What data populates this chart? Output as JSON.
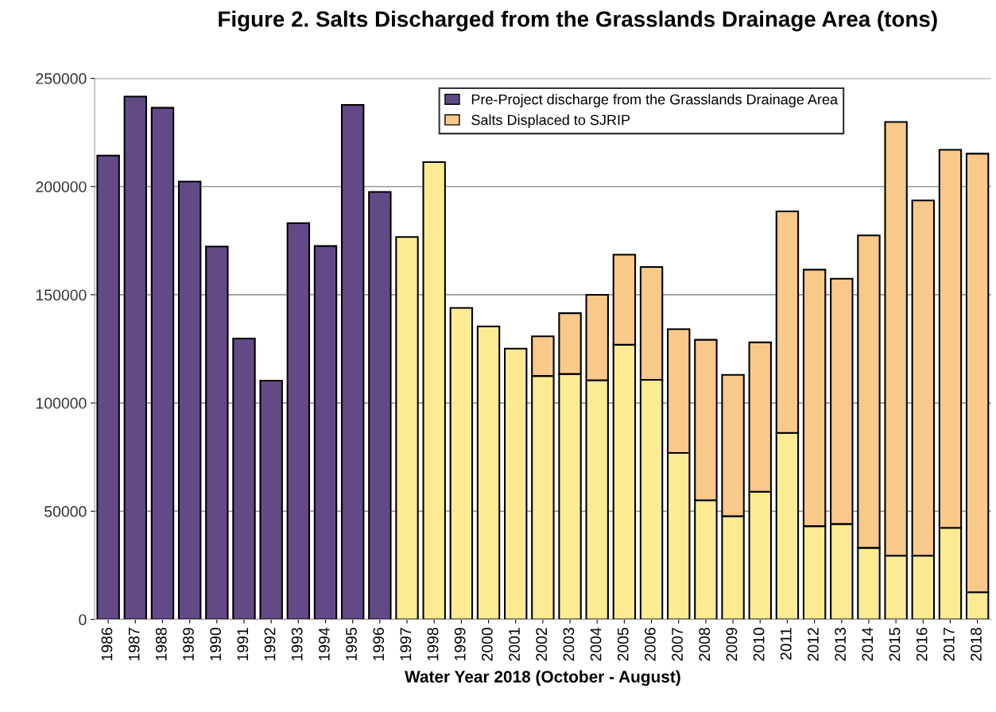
{
  "chart_data": {
    "type": "bar",
    "stacked": true,
    "title": "Figure 2. Salts Discharged from the Grasslands Drainage Area (tons)",
    "xlabel": "Water Year 2018 (October - August)",
    "categories": [
      "1986",
      "1987",
      "1988",
      "1989",
      "1990",
      "1991",
      "1992",
      "1993",
      "1994",
      "1995",
      "1996",
      "1997",
      "1998",
      "1999",
      "2000",
      "2001",
      "2002",
      "2003",
      "2004",
      "2005",
      "2006",
      "2007",
      "2008",
      "2009",
      "2010",
      "2011",
      "2012",
      "2013",
      "2014",
      "2015",
      "2016",
      "2017",
      "2018"
    ],
    "series": [
      {
        "name": "Pre-Project discharge from the Grasslands Drainage Area",
        "color": "#624a87",
        "values": [
          214300,
          241600,
          236400,
          202300,
          172300,
          129800,
          110300,
          183100,
          172500,
          237700,
          197500,
          null,
          null,
          null,
          null,
          null,
          null,
          null,
          null,
          null,
          null,
          null,
          null,
          null,
          null,
          null,
          null,
          null,
          null,
          null,
          null,
          null,
          null
        ]
      },
      {
        "color": "#fdeb93",
        "values": [
          null,
          null,
          null,
          null,
          null,
          null,
          null,
          null,
          null,
          null,
          null,
          176700,
          211300,
          143900,
          135400,
          125100,
          112500,
          113400,
          110500,
          126900,
          110700,
          76900,
          55100,
          47700,
          59000,
          86200,
          43100,
          44100,
          33100,
          29500,
          29500,
          42300,
          12600
        ]
      },
      {
        "name": "Salts Displaced to SJRIP",
        "color": "#f9c98a",
        "values": [
          null,
          null,
          null,
          null,
          null,
          null,
          null,
          null,
          null,
          null,
          null,
          null,
          null,
          null,
          null,
          null,
          18300,
          28100,
          39500,
          41600,
          52100,
          57200,
          74100,
          65300,
          69000,
          102300,
          118500,
          113300,
          144300,
          200300,
          164100,
          174700,
          202600
        ]
      }
    ],
    "ylim": [
      0,
      250000
    ],
    "yticks": [
      0,
      50000,
      100000,
      150000,
      200000,
      250000
    ],
    "grid": "y",
    "legend": "top"
  }
}
